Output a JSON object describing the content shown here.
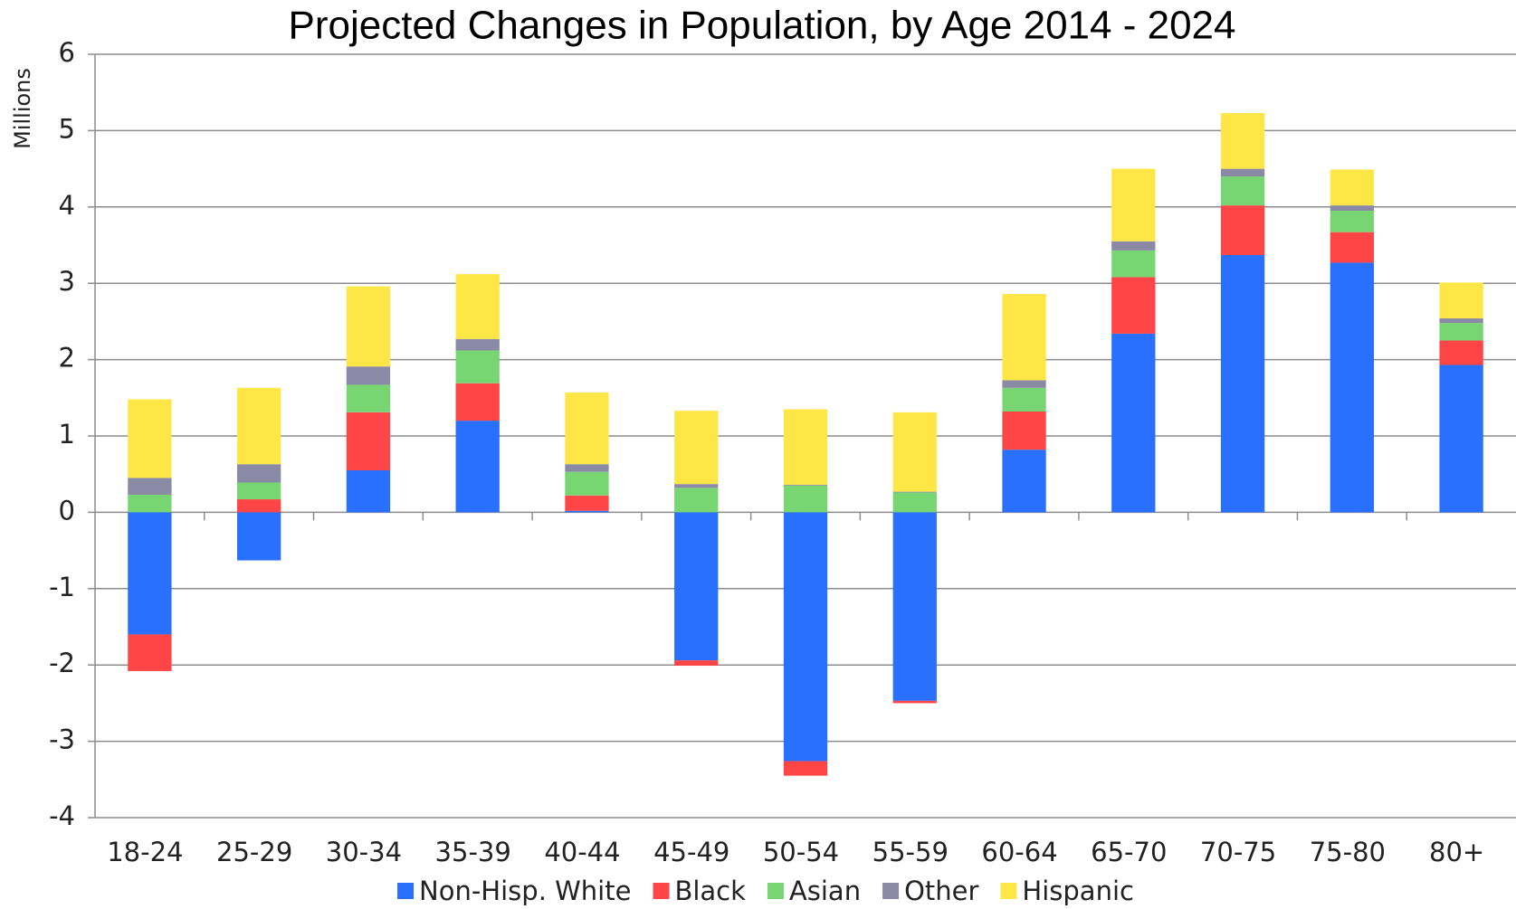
{
  "chart_data": {
    "type": "bar",
    "stacked": true,
    "title": "Projected Changes in Population, by Age 2014 - 2024",
    "y_label": "Millions",
    "categories": [
      "18-24",
      "25-29",
      "30-34",
      "35-39",
      "40-44",
      "45-49",
      "50-54",
      "55-59",
      "60-64",
      "65-70",
      "70-75",
      "75-80",
      "80+"
    ],
    "series": [
      {
        "name": "Non-Hisp. White",
        "color": "#2970ff",
        "values": [
          -1.6,
          -0.63,
          0.55,
          1.2,
          0.02,
          -1.94,
          -3.26,
          -2.47,
          0.82,
          2.34,
          3.37,
          3.27,
          1.93
        ]
      },
      {
        "name": "Black",
        "color": "#ff4545",
        "values": [
          -0.48,
          0.17,
          0.76,
          0.49,
          0.2,
          -0.07,
          -0.19,
          -0.03,
          0.5,
          0.74,
          0.65,
          0.4,
          0.32
        ]
      },
      {
        "name": "Asian",
        "color": "#78d672",
        "values": [
          0.23,
          0.22,
          0.36,
          0.43,
          0.31,
          0.32,
          0.35,
          0.26,
          0.31,
          0.35,
          0.38,
          0.28,
          0.23
        ]
      },
      {
        "name": "Other",
        "color": "#8a8aa6",
        "values": [
          0.22,
          0.24,
          0.24,
          0.15,
          0.1,
          0.05,
          0.01,
          0.01,
          0.1,
          0.12,
          0.1,
          0.07,
          0.06
        ]
      },
      {
        "name": "Hispanic",
        "color": "#ffe647",
        "values": [
          1.03,
          1.0,
          1.05,
          0.85,
          0.94,
          0.96,
          0.99,
          1.04,
          1.13,
          0.95,
          0.73,
          0.47,
          0.47
        ]
      }
    ],
    "ylim": [
      -4,
      6
    ],
    "yticks": [
      -4,
      -3,
      -2,
      -1,
      0,
      1,
      2,
      3,
      4,
      5,
      6
    ],
    "grid": true,
    "legend": "bottom"
  }
}
